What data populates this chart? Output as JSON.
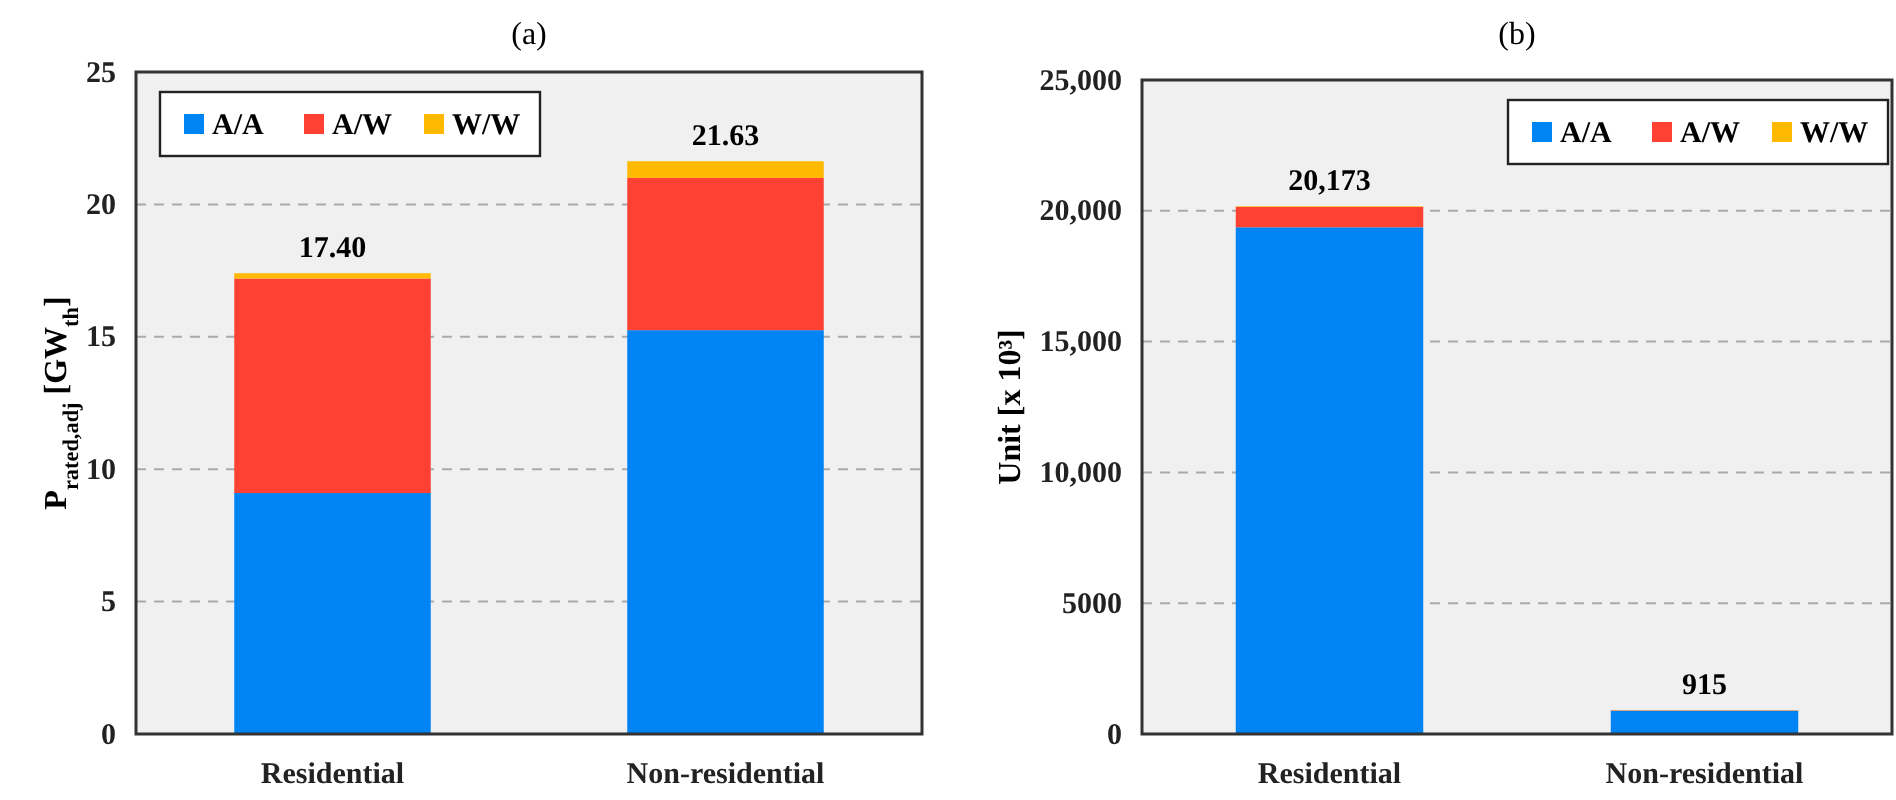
{
  "chart_data": [
    {
      "type": "bar",
      "title": "(a)",
      "ylabel": "P$_{rated,adj}$ [GW$_{th}$]",
      "categories": [
        "Residential",
        "Non-residential"
      ],
      "stacked": true,
      "series": [
        {
          "name": "A/A",
          "color": "#0084f4",
          "values": [
            9.1,
            15.25
          ]
        },
        {
          "name": "A/W",
          "color": "#ff4133",
          "values": [
            8.1,
            5.75
          ]
        },
        {
          "name": "W/W",
          "color": "#ffb900",
          "values": [
            0.2,
            0.63
          ]
        }
      ],
      "totals": [
        "17.40",
        "21.63"
      ],
      "ylim": [
        0,
        25
      ],
      "yticks": [
        0,
        5,
        10,
        15,
        20,
        25
      ],
      "grid": "y",
      "legend": "top left"
    },
    {
      "type": "bar",
      "title": "(b)",
      "ylabel": "Unit [x 10³]",
      "categories": [
        "Residential",
        "Non-residential"
      ],
      "stacked": true,
      "series": [
        {
          "name": "A/A",
          "color": "#0084f4",
          "values": [
            19370,
            890
          ]
        },
        {
          "name": "A/W",
          "color": "#ff4133",
          "values": [
            780,
            15
          ]
        },
        {
          "name": "W/W",
          "color": "#ffb900",
          "values": [
            23,
            10
          ]
        }
      ],
      "totals": [
        "20,173",
        "915"
      ],
      "ylim": [
        0,
        25000
      ],
      "yticks": [
        0,
        {
          "value": 5000,
          "label": "5000"
        },
        {
          "value": 10000,
          "label": "10,000"
        },
        {
          "value": 15000,
          "label": "15,000"
        },
        {
          "value": 20000,
          "label": "20,000"
        },
        {
          "value": 25000,
          "label": "25,000"
        }
      ],
      "grid": "y",
      "legend": "top right"
    }
  ]
}
